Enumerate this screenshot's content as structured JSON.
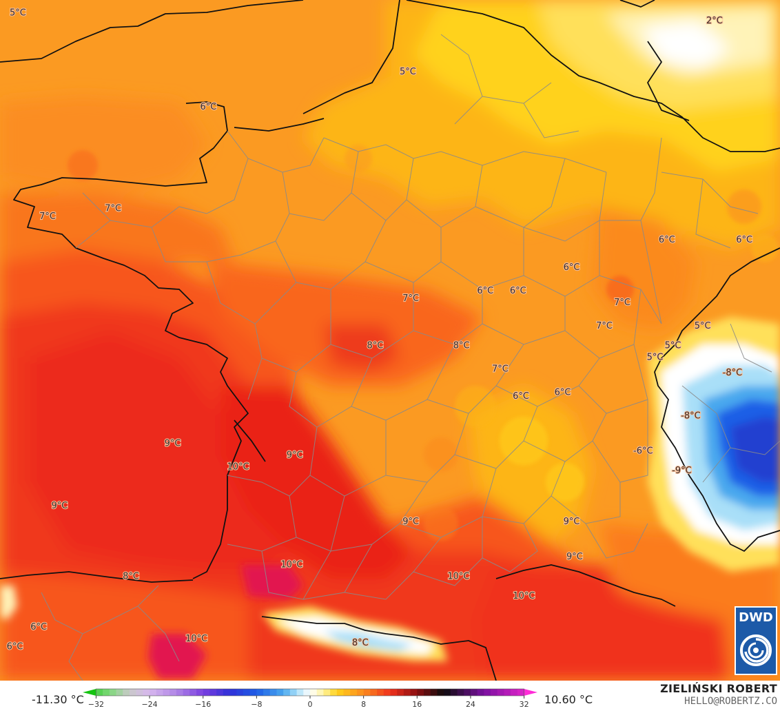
{
  "map": {
    "labels": [
      {
        "text": "5°C",
        "lon": -4.9,
        "lat": 51.1
      },
      {
        "text": "5°C",
        "lon": 1.65,
        "lat": 50.35
      },
      {
        "text": "2°C",
        "lon": 6.8,
        "lat": 51.0
      },
      {
        "text": "6°C",
        "lon": -1.7,
        "lat": 49.9
      },
      {
        "text": "7°C",
        "lon": -4.4,
        "lat": 48.5
      },
      {
        "text": "7°C",
        "lon": -3.3,
        "lat": 48.6
      },
      {
        "text": "6°C",
        "lon": 6.0,
        "lat": 48.2
      },
      {
        "text": "6°C",
        "lon": 7.3,
        "lat": 48.2
      },
      {
        "text": "6°C",
        "lon": 4.4,
        "lat": 47.85
      },
      {
        "text": "7°C",
        "lon": 1.7,
        "lat": 47.45
      },
      {
        "text": "6°C",
        "lon": 2.95,
        "lat": 47.55
      },
      {
        "text": "6°C",
        "lon": 3.5,
        "lat": 47.55
      },
      {
        "text": "7°C",
        "lon": 5.25,
        "lat": 47.4
      },
      {
        "text": "7°C",
        "lon": 4.95,
        "lat": 47.1
      },
      {
        "text": "5°C",
        "lon": 6.6,
        "lat": 47.1
      },
      {
        "text": "5°C",
        "lon": 6.1,
        "lat": 46.85
      },
      {
        "text": "5°C",
        "lon": 5.8,
        "lat": 46.7
      },
      {
        "text": "8°C",
        "lon": 1.1,
        "lat": 46.85
      },
      {
        "text": "8°C",
        "lon": 2.55,
        "lat": 46.85
      },
      {
        "text": "7°C",
        "lon": 3.2,
        "lat": 46.55
      },
      {
        "text": "-8°C",
        "lon": 7.1,
        "lat": 46.5
      },
      {
        "text": "6°C",
        "lon": 3.55,
        "lat": 46.2
      },
      {
        "text": "6°C",
        "lon": 4.25,
        "lat": 46.25
      },
      {
        "text": "-8°C",
        "lon": 6.4,
        "lat": 45.95
      },
      {
        "text": "9°C",
        "lon": -2.3,
        "lat": 45.6
      },
      {
        "text": "9°C",
        "lon": -0.25,
        "lat": 45.45
      },
      {
        "text": "-6°C",
        "lon": 5.6,
        "lat": 45.5
      },
      {
        "text": "10°C",
        "lon": -1.2,
        "lat": 45.3
      },
      {
        "text": "-9°C",
        "lon": 6.25,
        "lat": 45.25
      },
      {
        "text": "9°C",
        "lon": -4.2,
        "lat": 44.8
      },
      {
        "text": "9°C",
        "lon": 1.7,
        "lat": 44.6
      },
      {
        "text": "9°C",
        "lon": 4.4,
        "lat": 44.6
      },
      {
        "text": "10°C",
        "lon": -0.3,
        "lat": 44.05
      },
      {
        "text": "9°C",
        "lon": 4.45,
        "lat": 44.15
      },
      {
        "text": "8°C",
        "lon": -3.0,
        "lat": 43.9
      },
      {
        "text": "10°C",
        "lon": 2.5,
        "lat": 43.9
      },
      {
        "text": "10°C",
        "lon": 3.6,
        "lat": 43.65
      },
      {
        "text": "6°C",
        "lon": -4.55,
        "lat": 43.25
      },
      {
        "text": "10°C",
        "lon": -1.9,
        "lat": 43.1
      },
      {
        "text": "6°C",
        "lon": -4.95,
        "lat": 43.0
      },
      {
        "text": "8°C",
        "lon": 0.85,
        "lat": 43.05
      }
    ],
    "colors": {
      "warm_red": "#f0311d",
      "red": "#f7471f",
      "orange": "#fb7c1e",
      "orange_light": "#fb9622",
      "amber": "#fdb516",
      "yellow": "#ffd21a",
      "pale_yellow": "#fff2a8",
      "white": "#ffffff",
      "light_blue": "#8fd6f5",
      "blue": "#2e8fe6",
      "dark_blue": "#1f48d6",
      "hot_pink": "#e2184f"
    }
  },
  "colorbar": {
    "min_label": "-11.30 °C",
    "max_label": "10.60 °C",
    "ticks": [
      "−32",
      "−24",
      "−16",
      "−8",
      "0",
      "8",
      "16",
      "24",
      "32"
    ],
    "tick_values": [
      -32,
      -24,
      -16,
      -8,
      0,
      8,
      16,
      24,
      32
    ],
    "range": [
      -34,
      34
    ],
    "stops": [
      {
        "v": -34,
        "c": "#15c411"
      },
      {
        "v": -30,
        "c": "#7fd97a"
      },
      {
        "v": -27,
        "c": "#c9c9c9"
      },
      {
        "v": -24,
        "c": "#d7b7ee"
      },
      {
        "v": -20,
        "c": "#b086e6"
      },
      {
        "v": -16,
        "c": "#7a3fe0"
      },
      {
        "v": -12,
        "c": "#3030d8"
      },
      {
        "v": -8,
        "c": "#1f5ee6"
      },
      {
        "v": -4,
        "c": "#4aa8ee"
      },
      {
        "v": -2,
        "c": "#a9dff8"
      },
      {
        "v": 0,
        "c": "#ffffff"
      },
      {
        "v": 2,
        "c": "#fff3a0"
      },
      {
        "v": 4,
        "c": "#ffd21a"
      },
      {
        "v": 8,
        "c": "#fb8a1e"
      },
      {
        "v": 12,
        "c": "#f0311d"
      },
      {
        "v": 16,
        "c": "#8a0e10"
      },
      {
        "v": 20,
        "c": "#0c0c0c"
      },
      {
        "v": 26,
        "c": "#7a10a0"
      },
      {
        "v": 34,
        "c": "#ff2cd7"
      }
    ]
  },
  "logo": {
    "text": "DWD"
  },
  "credit": {
    "name": "ZIELIŃSKI ROBERT",
    "site": "HELLO@ROBERTZ.CO"
  }
}
